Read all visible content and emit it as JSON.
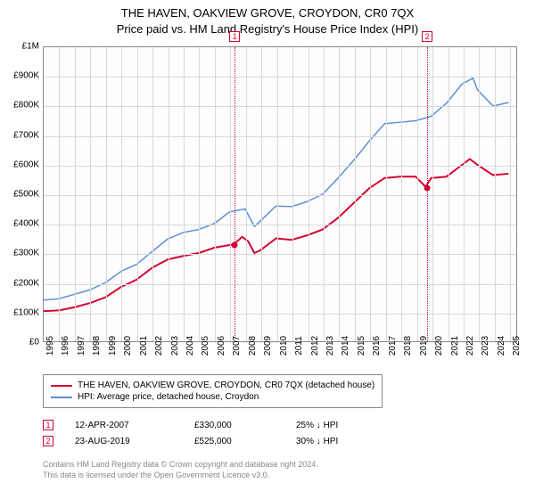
{
  "title_line1": "THE HAVEN, OAKVIEW GROVE, CROYDON, CR0 7QX",
  "title_line2": "Price paid vs. HM Land Registry's House Price Index (HPI)",
  "chart": {
    "type": "line",
    "background_color": "#fdfdfd",
    "grid_color": "#d9d9d9",
    "border_color": "#888888",
    "font_size_ticks": 10,
    "font_size_title": 13,
    "y": {
      "min": 0,
      "max": 1000000,
      "ticks": [
        0,
        100000,
        200000,
        300000,
        400000,
        500000,
        600000,
        700000,
        800000,
        900000,
        1000000
      ],
      "labels": [
        "£0",
        "£100K",
        "£200K",
        "£300K",
        "£400K",
        "£500K",
        "£600K",
        "£700K",
        "£800K",
        "£900K",
        "£1M"
      ]
    },
    "x": {
      "min": 1995,
      "max": 2025.5,
      "ticks": [
        1995,
        1996,
        1997,
        1998,
        1999,
        2000,
        2001,
        2002,
        2003,
        2004,
        2005,
        2006,
        2007,
        2008,
        2009,
        2010,
        2011,
        2012,
        2013,
        2014,
        2015,
        2016,
        2017,
        2018,
        2019,
        2020,
        2021,
        2022,
        2023,
        2024,
        2025
      ],
      "labels": [
        "1995",
        "1996",
        "1997",
        "1998",
        "1999",
        "2000",
        "2001",
        "2002",
        "2003",
        "2004",
        "2005",
        "2006",
        "2007",
        "2008",
        "2009",
        "2010",
        "2011",
        "2012",
        "2013",
        "2014",
        "2015",
        "2016",
        "2017",
        "2018",
        "2019",
        "2020",
        "2021",
        "2022",
        "2023",
        "2024",
        "2025"
      ]
    },
    "series_property": {
      "label": "THE HAVEN, OAKVIEW GROVE, CROYDON, CR0 7QX (detached house)",
      "color": "#d4022f",
      "line_width": 2,
      "data": [
        [
          1995,
          102000
        ],
        [
          1996,
          105000
        ],
        [
          1997,
          116000
        ],
        [
          1998,
          130000
        ],
        [
          1999,
          150000
        ],
        [
          2000,
          185000
        ],
        [
          2001,
          210000
        ],
        [
          2002,
          250000
        ],
        [
          2003,
          278000
        ],
        [
          2004,
          290000
        ],
        [
          2005,
          300000
        ],
        [
          2006,
          318000
        ],
        [
          2007.28,
          330000
        ],
        [
          2007.8,
          355000
        ],
        [
          2008.2,
          340000
        ],
        [
          2008.6,
          300000
        ],
        [
          2009,
          310000
        ],
        [
          2010,
          350000
        ],
        [
          2011,
          345000
        ],
        [
          2012,
          360000
        ],
        [
          2013,
          380000
        ],
        [
          2014,
          420000
        ],
        [
          2015,
          470000
        ],
        [
          2016,
          520000
        ],
        [
          2017,
          555000
        ],
        [
          2018,
          560000
        ],
        [
          2019,
          560000
        ],
        [
          2019.65,
          525000
        ],
        [
          2020,
          555000
        ],
        [
          2021,
          560000
        ],
        [
          2022,
          600000
        ],
        [
          2022.5,
          620000
        ],
        [
          2023,
          600000
        ],
        [
          2024,
          565000
        ],
        [
          2025,
          570000
        ]
      ]
    },
    "series_hpi": {
      "label": "HPI: Average price, detached house, Croydon",
      "color": "#5b8fd6",
      "line_width": 1.5,
      "data": [
        [
          1995,
          140000
        ],
        [
          1996,
          145000
        ],
        [
          1997,
          160000
        ],
        [
          1998,
          175000
        ],
        [
          1999,
          200000
        ],
        [
          2000,
          238000
        ],
        [
          2001,
          262000
        ],
        [
          2002,
          305000
        ],
        [
          2003,
          348000
        ],
        [
          2004,
          370000
        ],
        [
          2005,
          380000
        ],
        [
          2006,
          400000
        ],
        [
          2007,
          440000
        ],
        [
          2008,
          450000
        ],
        [
          2008.6,
          390000
        ],
        [
          2009,
          410000
        ],
        [
          2010,
          460000
        ],
        [
          2011,
          458000
        ],
        [
          2012,
          475000
        ],
        [
          2013,
          500000
        ],
        [
          2014,
          555000
        ],
        [
          2015,
          615000
        ],
        [
          2016,
          680000
        ],
        [
          2017,
          740000
        ],
        [
          2018,
          745000
        ],
        [
          2019,
          750000
        ],
        [
          2020,
          765000
        ],
        [
          2021,
          810000
        ],
        [
          2022,
          875000
        ],
        [
          2022.7,
          895000
        ],
        [
          2023,
          855000
        ],
        [
          2024,
          800000
        ],
        [
          2025,
          812000
        ]
      ]
    },
    "sale_markers": [
      {
        "n": "1",
        "year": 2007.28,
        "price": 330000,
        "date_label": "12-APR-2007",
        "price_label": "£330,000",
        "delta_label": "25% ↓ HPI",
        "color": "#d4022f"
      },
      {
        "n": "2",
        "year": 2019.65,
        "price": 525000,
        "date_label": "23-AUG-2019",
        "price_label": "£525,000",
        "delta_label": "30% ↓ HPI",
        "color": "#d4022f"
      }
    ]
  },
  "attribution_line1": "Contains HM Land Registry data © Crown copyright and database right 2024.",
  "attribution_line2": "This data is licensed under the Open Government Licence v3.0."
}
